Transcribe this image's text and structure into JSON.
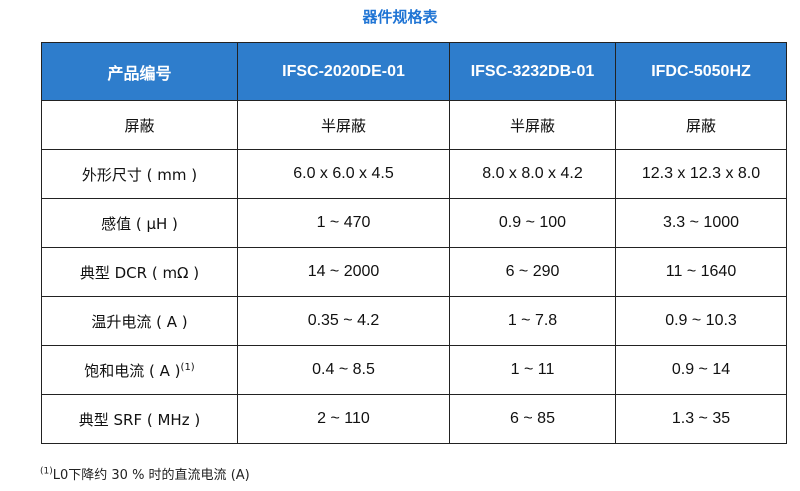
{
  "title": "器件规格表",
  "table": {
    "headers": [
      "产品编号",
      "IFSC-2020DE-01",
      "IFSC-3232DB-01",
      "IFDC-5050HZ"
    ],
    "rows": [
      {
        "label": "屏蔽",
        "label_sup": "",
        "values": [
          "半屏蔽",
          "半屏蔽",
          "屏蔽"
        ]
      },
      {
        "label": "外形尺寸 ( mm )",
        "label_sup": "",
        "values": [
          "6.0 x 6.0 x 4.5",
          "8.0 x 8.0 x 4.2",
          "12.3 x 12.3 x 8.0"
        ]
      },
      {
        "label": "感值 ( μH )",
        "label_sup": "",
        "values": [
          "1 ~ 470",
          "0.9 ~ 100",
          "3.3 ~ 1000"
        ]
      },
      {
        "label": "典型 DCR ( mΩ )",
        "label_sup": "",
        "values": [
          "14 ~ 2000",
          "6 ~ 290",
          "11 ~ 1640"
        ]
      },
      {
        "label": "温升电流 ( A )",
        "label_sup": "",
        "values": [
          "0.35 ~ 4.2",
          "1 ~ 7.8",
          "0.9 ~ 10.3"
        ]
      },
      {
        "label": "饱和电流 ( A )",
        "label_sup": "(1)",
        "values": [
          "0.4 ~ 8.5",
          "1 ~ 11",
          "0.9 ~ 14"
        ]
      },
      {
        "label": "典型 SRF ( MHz )",
        "label_sup": "",
        "values": [
          "2 ~ 110",
          "6 ~ 85",
          "1.3 ~ 35"
        ]
      }
    ]
  },
  "footnote": {
    "marker": "(1)",
    "text": "L0下降约 30 % 时的直流电流 (A)"
  },
  "colors": {
    "title": "#1f74d4",
    "header_bg": "#2e7dcc",
    "header_text": "#ffffff",
    "border": "#222222"
  }
}
